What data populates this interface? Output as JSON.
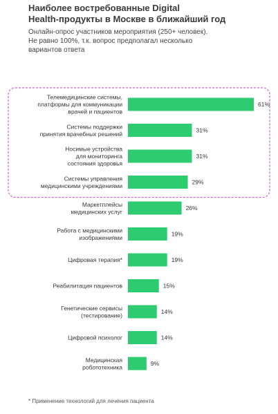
{
  "title": "Наиболее востребованные Digital\nHealth-продукты в Москве в ближайший год",
  "subtitle": "Онлайн-опрос участников мероприятия (250+ человек).\nНе равно 100%, т.к. вопрос предполагал несколько\nвариантов ответа",
  "footnote": "* Применение технологий для лечения пациента",
  "colors": {
    "bar": "#2ecc71",
    "highlight_border": "#cc66cc"
  },
  "chart_data": {
    "type": "bar",
    "orientation": "horizontal",
    "categories": [
      "Телемедицинские системы,\nплатформы для коммуникации\nврачей и пациентов",
      "Системы поддержки\nпринятия врачебных решений",
      "Носимые устройства\nдля мониторинга\nсостояния здоровья",
      "Системы управления\nмедицинскими учреждениями",
      "Маркетплейсы\nмедицинских услуг",
      "Работа с медицинскими\nизображениями",
      "Цифровая терапия*",
      "Реабилитация пациентов",
      "Генетические сервисы\n(тестирование)",
      "Цифровой психолог",
      "Медицинская\nробототехника"
    ],
    "values": [
      61,
      31,
      31,
      29,
      26,
      19,
      19,
      15,
      14,
      14,
      9
    ],
    "value_labels": [
      "61%",
      "31%",
      "31%",
      "29%",
      "26%",
      "19%",
      "19%",
      "15%",
      "14%",
      "14%",
      "9%"
    ],
    "highlighted_count": 4,
    "xlim": [
      0,
      61
    ]
  }
}
